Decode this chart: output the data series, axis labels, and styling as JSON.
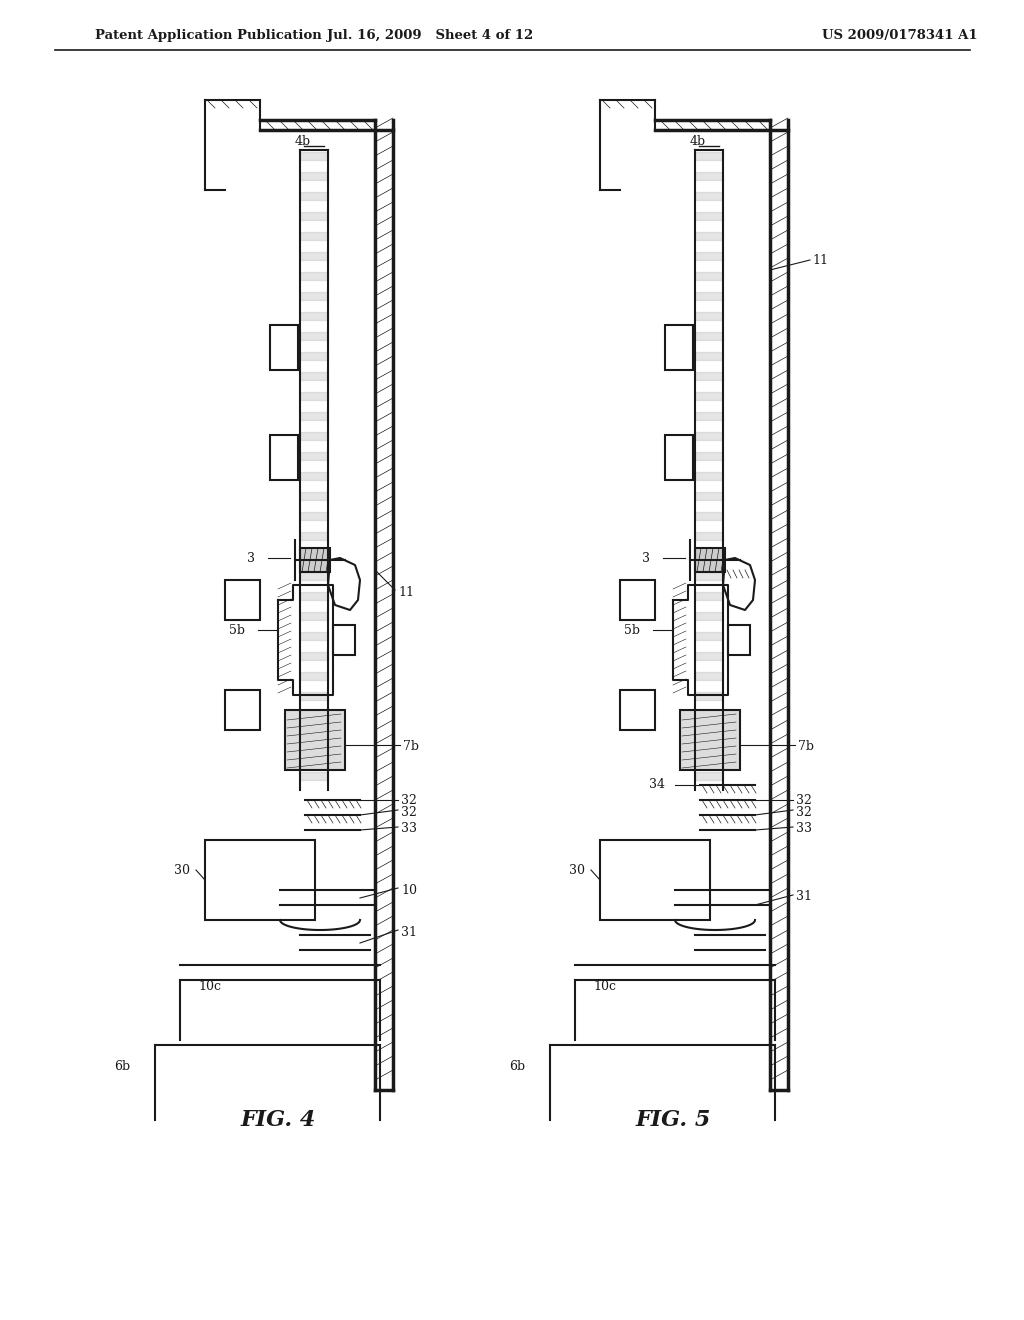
{
  "bg_color": "#ffffff",
  "header_left": "Patent Application Publication",
  "header_mid": "Jul. 16, 2009   Sheet 4 of 12",
  "header_right": "US 2009/0178341 A1",
  "fig4_label": "FIG. 4",
  "fig5_label": "FIG. 5",
  "line_color": "#1a1a1a",
  "hatch_color": "#1a1a1a",
  "label_color": "#1a1a1a",
  "font_size_header": 9.5,
  "font_size_label": 10
}
